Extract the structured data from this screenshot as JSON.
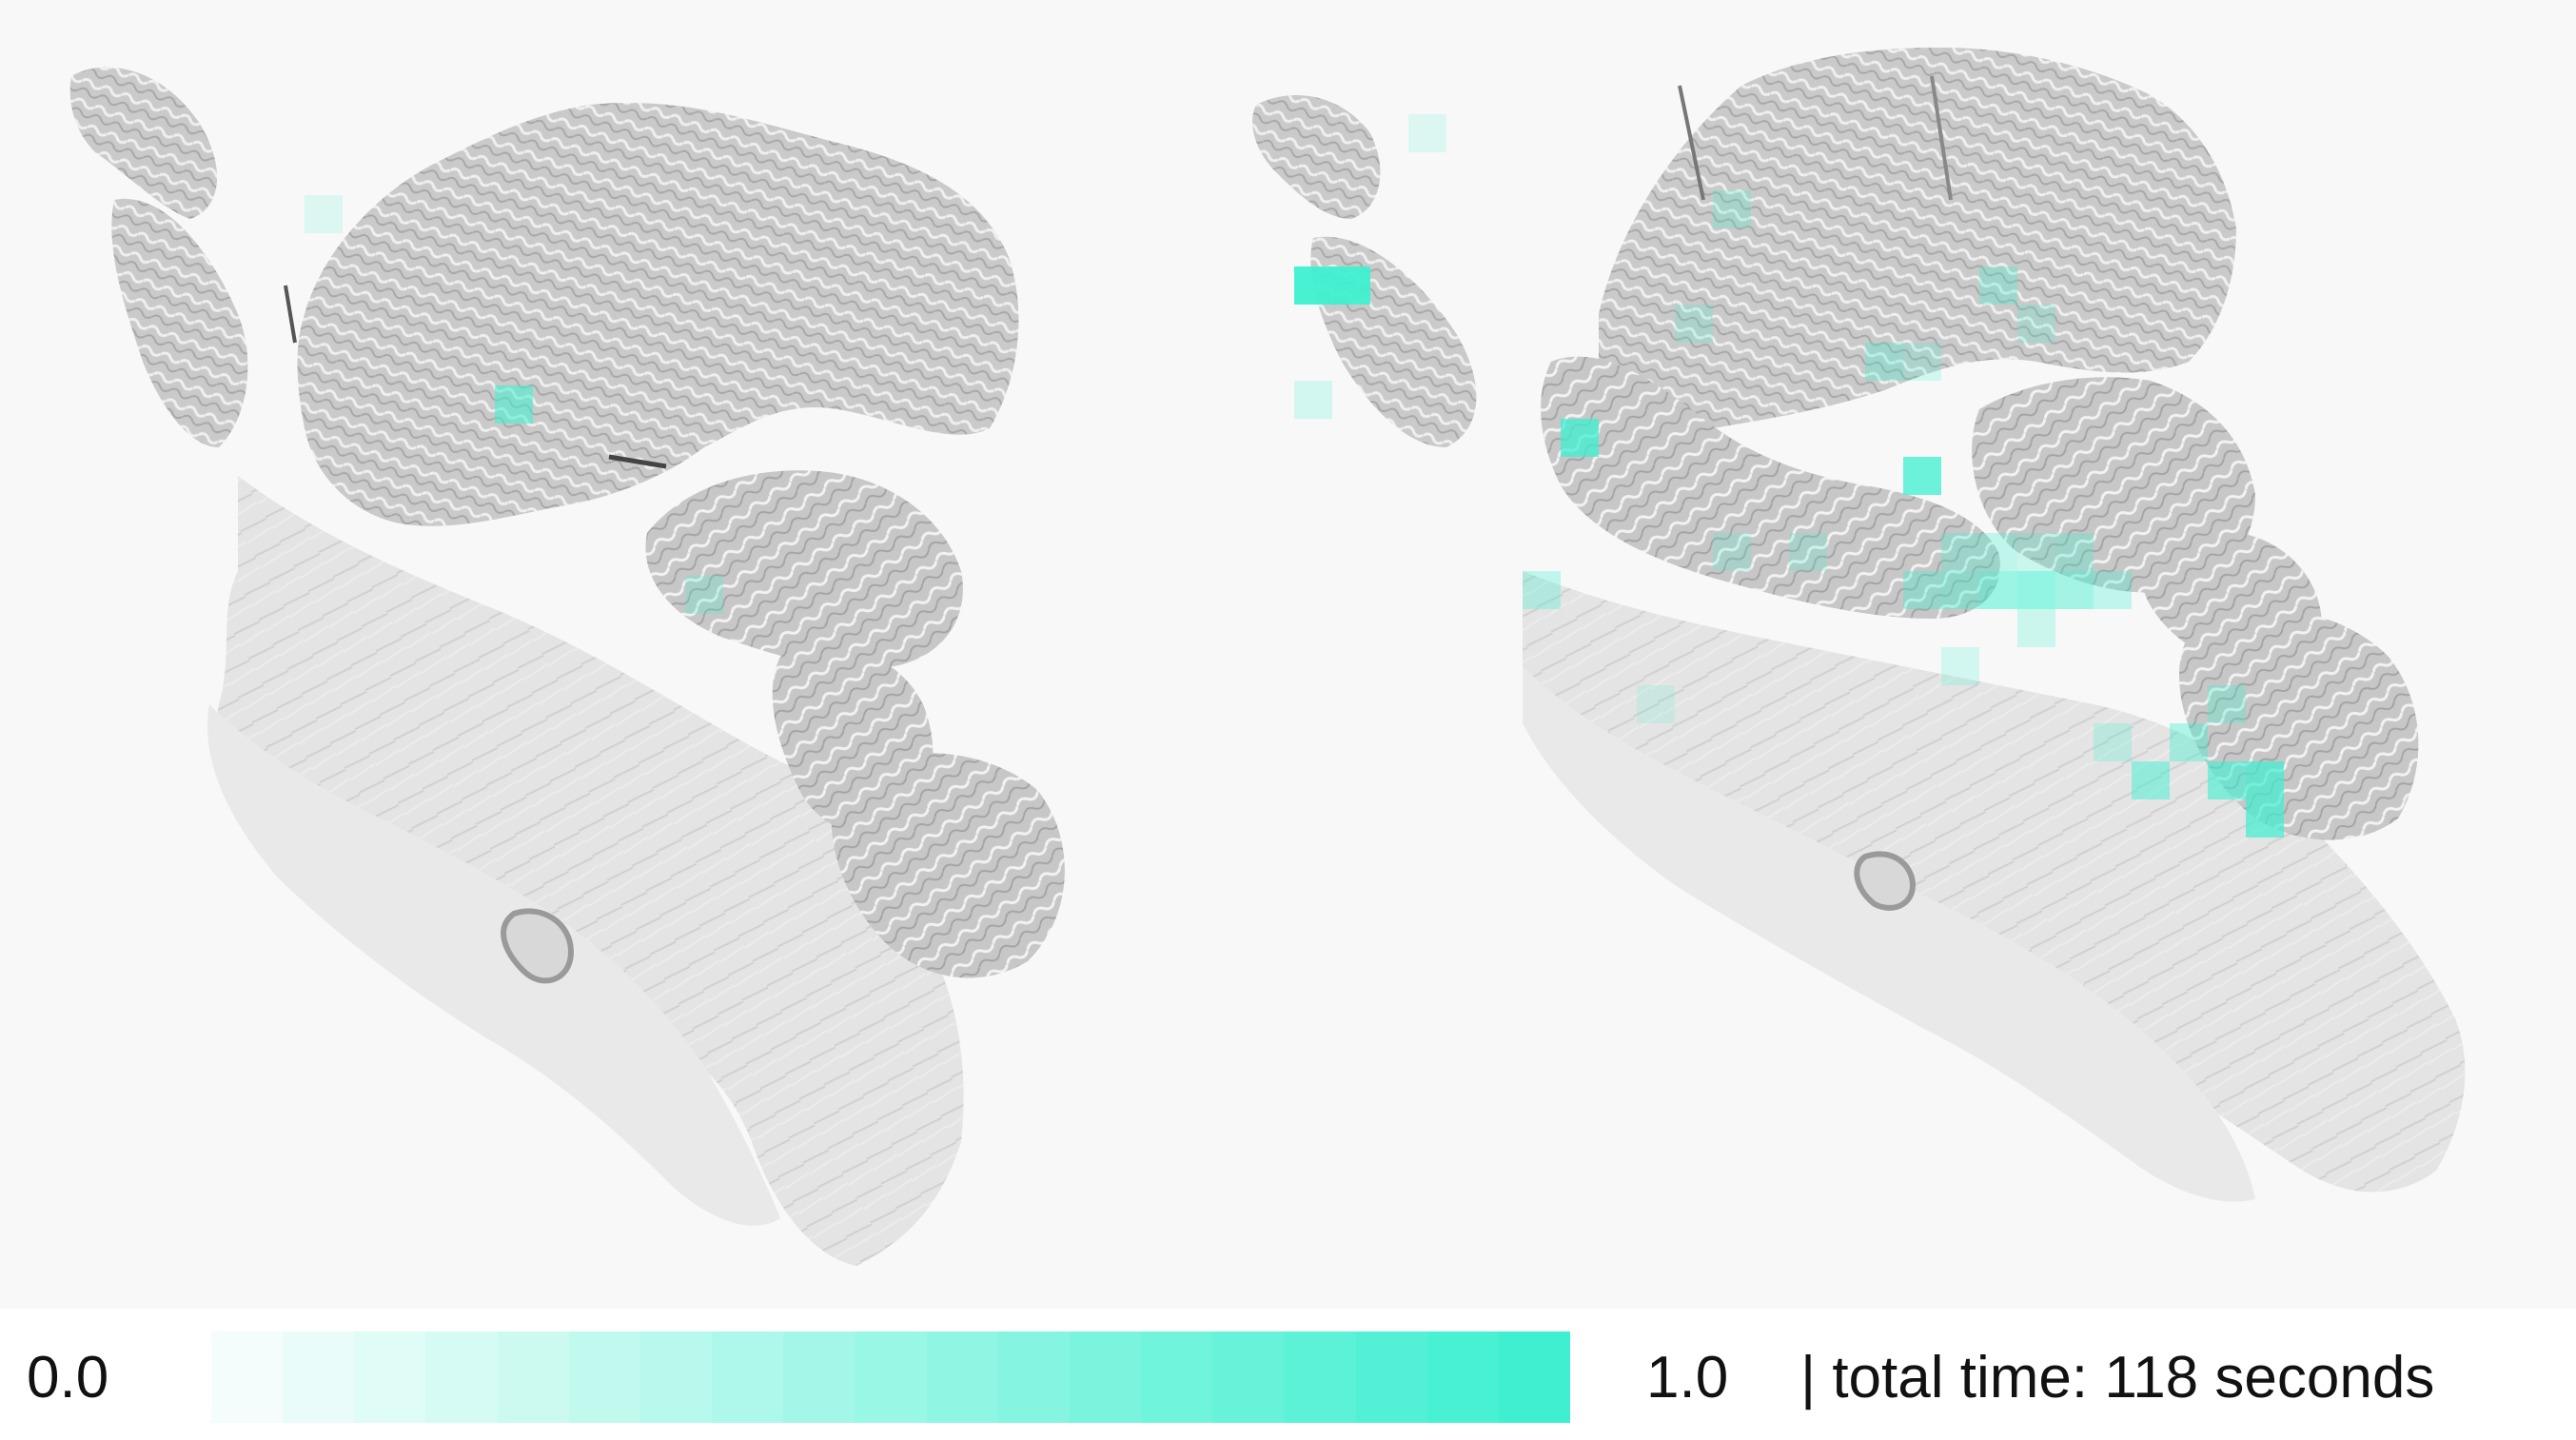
{
  "legend": {
    "min_label": "0.0",
    "max_label": "1.0",
    "time_label": "| total time: 118 seconds",
    "color_start": "#f4fdfb",
    "color_end": "#3ef0d0",
    "steps": 19
  },
  "colors": {
    "background": "#f8f8f8",
    "tissue_fill": "#c9c9c9",
    "tissue_dark": "#9a9a9a",
    "stroma": "#e2e2e2",
    "heat": "#3ef0d0"
  },
  "heatmap_left": [
    {
      "col": 0,
      "row": 0,
      "v": 0.15
    },
    {
      "col": 5,
      "row": 5,
      "v": 0.55
    },
    {
      "col": 10,
      "row": 10,
      "v": 0.25
    }
  ],
  "heatmap_right": [
    {
      "col": 3,
      "row": -3,
      "v": 0.15
    },
    {
      "col": 0,
      "row": 1,
      "v": 0.95
    },
    {
      "col": 1,
      "row": 1,
      "v": 0.95
    },
    {
      "col": 0,
      "row": 4,
      "v": 0.2
    },
    {
      "col": 7,
      "row": 5,
      "v": 0.75
    },
    {
      "col": 10,
      "row": 2,
      "v": 0.2
    },
    {
      "col": 11,
      "row": -1,
      "v": 0.25
    },
    {
      "col": 15,
      "row": 3,
      "v": 0.3
    },
    {
      "col": 16,
      "row": 3,
      "v": 0.2
    },
    {
      "col": 18,
      "row": 1,
      "v": 0.3
    },
    {
      "col": 19,
      "row": 2,
      "v": 0.2
    },
    {
      "col": 11,
      "row": 8,
      "v": 0.2
    },
    {
      "col": 13,
      "row": 8,
      "v": 0.2
    },
    {
      "col": 16,
      "row": 6,
      "v": 0.75
    },
    {
      "col": 17,
      "row": 8,
      "v": 0.3
    },
    {
      "col": 18,
      "row": 8,
      "v": 0.3
    },
    {
      "col": 19,
      "row": 8,
      "v": 0.25
    },
    {
      "col": 20,
      "row": 8,
      "v": 0.3
    },
    {
      "col": 16,
      "row": 9,
      "v": 0.35
    },
    {
      "col": 17,
      "row": 9,
      "v": 0.4
    },
    {
      "col": 18,
      "row": 9,
      "v": 0.5
    },
    {
      "col": 19,
      "row": 9,
      "v": 0.55
    },
    {
      "col": 20,
      "row": 9,
      "v": 0.45
    },
    {
      "col": 21,
      "row": 9,
      "v": 0.3
    },
    {
      "col": 19,
      "row": 10,
      "v": 0.25
    },
    {
      "col": 17,
      "row": 11,
      "v": 0.2
    },
    {
      "col": 6,
      "row": 9,
      "v": 0.3
    },
    {
      "col": 9,
      "row": 12,
      "v": 0.15
    },
    {
      "col": 21,
      "row": 13,
      "v": 0.25
    },
    {
      "col": 23,
      "row": 13,
      "v": 0.4
    },
    {
      "col": 24,
      "row": 12,
      "v": 0.3
    },
    {
      "col": 22,
      "row": 14,
      "v": 0.5
    },
    {
      "col": 24,
      "row": 14,
      "v": 0.6
    },
    {
      "col": 25,
      "row": 14,
      "v": 0.7
    },
    {
      "col": 25,
      "row": 15,
      "v": 0.7
    }
  ]
}
